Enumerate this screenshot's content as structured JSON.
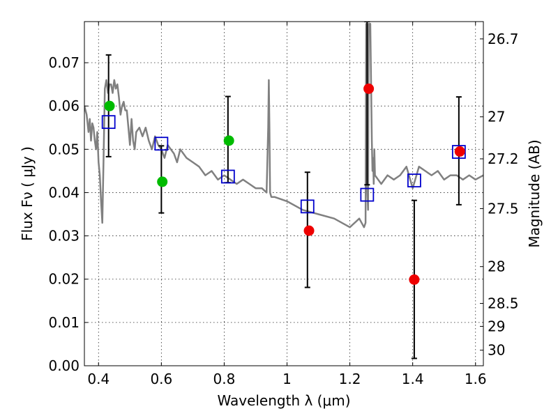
{
  "chart_data": {
    "type": "scatter",
    "title": "",
    "xlabel": "Wavelength  λ (μm)",
    "ylabel": "Flux  Fν  ( μJy )",
    "ylabel_right": "Magnitude (AB)",
    "xlim": [
      0.355,
      1.625
    ],
    "ylim": [
      0.0,
      0.0795
    ],
    "grid": true,
    "x_ticks": [
      0.4,
      0.6,
      0.8,
      1.0,
      1.2,
      1.4,
      1.6
    ],
    "x_tick_labels": [
      "0.4",
      "0.6",
      "0.8",
      "1",
      "1.2",
      "1.4",
      "1.6"
    ],
    "y_ticks": [
      0.0,
      0.01,
      0.02,
      0.03,
      0.04,
      0.05,
      0.06,
      0.07
    ],
    "y_tick_labels": [
      "0.00",
      "0.01",
      "0.02",
      "0.03",
      "0.04",
      "0.05",
      "0.06",
      "0.07"
    ],
    "right_ticks": [
      {
        "label": "26.7",
        "flux": 0.0755
      },
      {
        "label": "27",
        "flux": 0.0575
      },
      {
        "label": "27.2",
        "flux": 0.0478
      },
      {
        "label": "27.5",
        "flux": 0.0363
      },
      {
        "label": "28",
        "flux": 0.0229
      },
      {
        "label": "28.5",
        "flux": 0.0144
      },
      {
        "label": "29",
        "flux": 0.0091
      },
      {
        "label": "30",
        "flux": 0.0036
      }
    ],
    "colors": {
      "model": "#808080",
      "green": "#00bb00",
      "red": "#ee0000",
      "box": "#0000cc",
      "errorbar": "#000000"
    },
    "series": [
      {
        "kind": "line",
        "x": [
          0.355,
          0.362,
          0.368,
          0.372,
          0.376,
          0.38,
          0.384,
          0.388,
          0.392,
          0.396,
          0.4,
          0.404,
          0.408,
          0.412,
          0.416,
          0.42,
          0.425,
          0.43,
          0.435,
          0.44,
          0.445,
          0.45,
          0.455,
          0.46,
          0.465,
          0.47,
          0.475,
          0.48,
          0.485,
          0.49,
          0.495,
          0.5,
          0.505,
          0.51,
          0.515,
          0.52,
          0.53,
          0.54,
          0.55,
          0.56,
          0.57,
          0.58,
          0.59,
          0.6,
          0.61,
          0.62,
          0.63,
          0.64,
          0.65,
          0.66,
          0.67,
          0.68,
          0.7,
          0.72,
          0.74,
          0.76,
          0.78,
          0.8,
          0.82,
          0.84,
          0.86,
          0.88,
          0.9,
          0.92,
          0.935,
          0.94,
          0.942,
          0.944,
          0.946,
          0.95,
          0.96,
          1.0,
          1.05,
          1.1,
          1.15,
          1.2,
          1.23,
          1.245,
          1.25,
          1.252,
          1.254,
          1.256,
          1.258,
          1.26,
          1.265,
          1.27,
          1.272,
          1.274,
          1.276,
          1.278,
          1.28,
          1.29,
          1.3,
          1.32,
          1.34,
          1.36,
          1.38,
          1.4,
          1.42,
          1.44,
          1.46,
          1.48,
          1.5,
          1.52,
          1.54,
          1.56,
          1.58,
          1.6,
          1.625
        ],
        "y": [
          0.06,
          0.058,
          0.054,
          0.057,
          0.052,
          0.056,
          0.055,
          0.052,
          0.05,
          0.054,
          0.047,
          0.044,
          0.038,
          0.033,
          0.048,
          0.064,
          0.066,
          0.063,
          0.065,
          0.065,
          0.063,
          0.066,
          0.064,
          0.065,
          0.062,
          0.058,
          0.06,
          0.061,
          0.059,
          0.059,
          0.055,
          0.051,
          0.057,
          0.052,
          0.05,
          0.054,
          0.055,
          0.053,
          0.055,
          0.052,
          0.05,
          0.053,
          0.051,
          0.05,
          0.048,
          0.051,
          0.05,
          0.049,
          0.047,
          0.05,
          0.049,
          0.048,
          0.047,
          0.046,
          0.044,
          0.045,
          0.043,
          0.044,
          0.043,
          0.042,
          0.043,
          0.042,
          0.041,
          0.041,
          0.04,
          0.055,
          0.066,
          0.055,
          0.04,
          0.039,
          0.039,
          0.038,
          0.036,
          0.035,
          0.034,
          0.032,
          0.034,
          0.032,
          0.033,
          0.079,
          0.079,
          0.04,
          0.036,
          0.079,
          0.079,
          0.052,
          0.045,
          0.048,
          0.042,
          0.05,
          0.044,
          0.043,
          0.042,
          0.044,
          0.043,
          0.044,
          0.046,
          0.041,
          0.046,
          0.045,
          0.044,
          0.045,
          0.043,
          0.044,
          0.044,
          0.043,
          0.044,
          0.043,
          0.044
        ]
      },
      {
        "kind": "points",
        "marker": "circle",
        "color": "green",
        "x": [
          0.435,
          0.603,
          0.815
        ],
        "y": [
          0.06,
          0.0425,
          0.052
        ]
      },
      {
        "kind": "points",
        "marker": "circle",
        "color": "red",
        "x": [
          1.07,
          1.26,
          1.405,
          1.55
        ],
        "y": [
          0.0312,
          0.064,
          0.0199,
          0.0495
        ]
      },
      {
        "kind": "points",
        "marker": "square",
        "color": "box",
        "x": [
          0.432,
          0.6,
          0.812,
          1.065,
          1.255,
          1.405,
          1.547
        ],
        "y": [
          0.0563,
          0.0513,
          0.0437,
          0.0368,
          0.0395,
          0.0428,
          0.0494
        ]
      },
      {
        "kind": "errorbars",
        "x": [
          0.432,
          0.6,
          0.812,
          1.065,
          1.255,
          1.405,
          1.547
        ],
        "ylow": [
          0.0483,
          0.0353,
          0.0423,
          0.0181,
          0.0418,
          0.0017,
          0.0372
        ],
        "yhigh": [
          0.0718,
          0.0508,
          0.0622,
          0.0447,
          0.0795,
          0.0382,
          0.0621
        ]
      }
    ]
  }
}
